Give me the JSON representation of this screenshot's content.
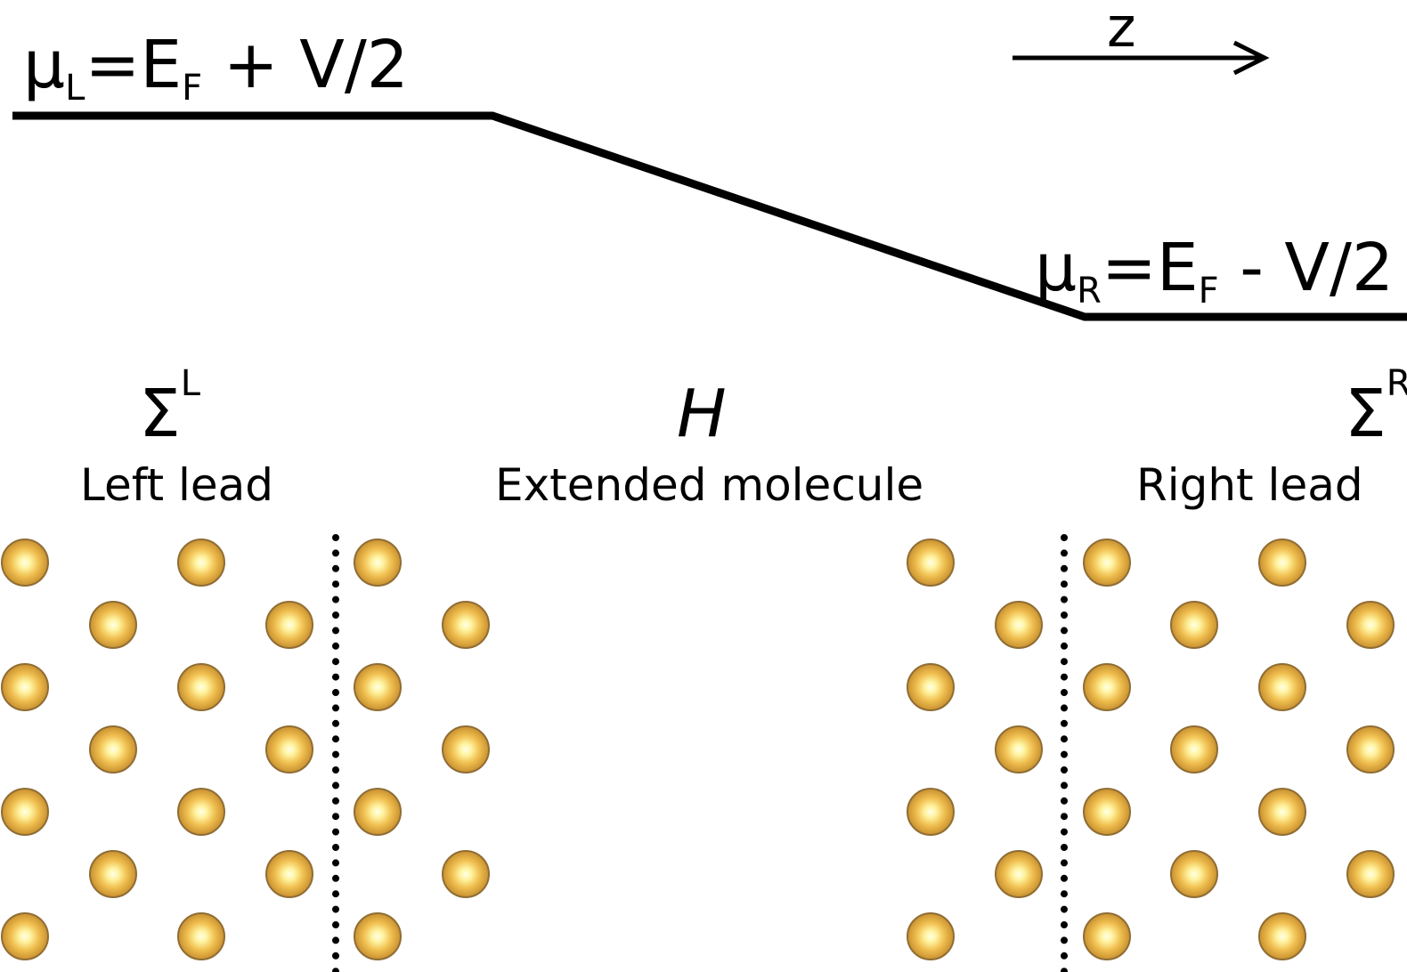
{
  "potential": {
    "left_symbol": "μ",
    "left_subscript": "L",
    "left_eq": "=E",
    "left_eq_subscript": "F",
    "left_tail": " + V/2",
    "right_symbol": "μ",
    "right_subscript": "R",
    "right_eq": "=E",
    "right_eq_subscript": "F",
    "right_tail": " - V/2"
  },
  "axis": {
    "label": "z"
  },
  "regions": {
    "left": {
      "symbol": "Σ",
      "superscript": "L",
      "name": "Left lead"
    },
    "center": {
      "symbol": "H",
      "name": "Extended molecule"
    },
    "right": {
      "symbol": "Σ",
      "superscript": "R",
      "name": "Right lead"
    }
  },
  "colors": {
    "atom_light": "#fffbd0",
    "atom_mid": "#f1c155",
    "atom_dark": "#c48a2c",
    "atom_edge": "#8f6d35",
    "line": "#000000"
  }
}
